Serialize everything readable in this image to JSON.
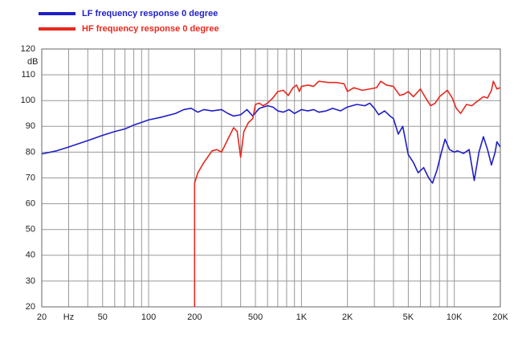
{
  "chart_data": {
    "type": "line",
    "log_x": true,
    "grid": true,
    "legend": "top-left",
    "y_label": "dB",
    "xlim": [
      20,
      20000
    ],
    "ylim": [
      20,
      120
    ],
    "xticks": [
      20,
      {
        "value": 30,
        "label": "Hz"
      },
      50,
      100,
      200,
      500,
      {
        "value": 1000,
        "label": "1K"
      },
      {
        "value": 2000,
        "label": "2K"
      },
      {
        "value": 5000,
        "label": "5K"
      },
      {
        "value": 10000,
        "label": "10K"
      },
      {
        "value": 20000,
        "label": "20K"
      }
    ],
    "xgrid": [
      20,
      30,
      40,
      50,
      60,
      70,
      80,
      90,
      100,
      200,
      300,
      400,
      500,
      600,
      700,
      800,
      900,
      1000,
      2000,
      3000,
      4000,
      5000,
      6000,
      7000,
      8000,
      9000,
      10000,
      20000
    ],
    "yticks": [
      20,
      30,
      40,
      50,
      60,
      70,
      80,
      90,
      100,
      110,
      120
    ],
    "series": [
      {
        "name": "LF frequency response 0 degree",
        "color": "#1f1fc8",
        "x": [
          20,
          25,
          30,
          40,
          50,
          60,
          70,
          80,
          100,
          120,
          150,
          170,
          190,
          210,
          230,
          260,
          300,
          330,
          360,
          400,
          440,
          480,
          530,
          600,
          650,
          700,
          760,
          830,
          900,
          1000,
          1100,
          1200,
          1300,
          1450,
          1600,
          1800,
          2000,
          2300,
          2600,
          2800,
          3000,
          3200,
          3500,
          3800,
          4000,
          4300,
          4600,
          5000,
          5400,
          5800,
          6300,
          6800,
          7200,
          7700,
          8200,
          8700,
          9300,
          10000,
          10500,
          11500,
          12500,
          13500,
          14500,
          15500,
          16500,
          17500,
          18500,
          19000,
          20000
        ],
        "values": [
          79.3,
          80.5,
          82,
          84.5,
          86.5,
          88,
          89,
          90.5,
          92.5,
          93.5,
          95,
          96.5,
          97,
          95.5,
          96.5,
          96,
          96.5,
          95,
          94,
          94.5,
          96.5,
          94,
          97,
          98,
          97.5,
          96,
          95.5,
          96.5,
          95,
          96.5,
          96,
          96.5,
          95.5,
          96,
          97,
          96,
          97.5,
          98.5,
          98,
          99,
          97,
          94.5,
          96,
          94,
          93,
          87,
          90,
          79,
          76,
          72,
          74,
          70,
          68,
          73,
          79.5,
          85,
          81,
          80,
          80.5,
          79.5,
          81,
          69,
          80,
          86,
          81,
          75,
          80,
          84,
          82
        ]
      },
      {
        "name": "HF frequency response 0 degree",
        "color": "#e8281e",
        "x": [
          200,
          200,
          210,
          230,
          260,
          280,
          300,
          330,
          360,
          380,
          400,
          420,
          450,
          480,
          500,
          530,
          560,
          600,
          650,
          700,
          760,
          820,
          880,
          930,
          970,
          1000,
          1100,
          1200,
          1300,
          1500,
          1700,
          1900,
          2000,
          2200,
          2500,
          2800,
          3100,
          3300,
          3600,
          4000,
          4400,
          4700,
          5000,
          5400,
          6000,
          6500,
          7000,
          7500,
          8000,
          9000,
          9700,
          10300,
          11000,
          12000,
          13000,
          14000,
          15500,
          16500,
          17500,
          18000,
          18500,
          19000,
          20000
        ],
        "values": [
          20,
          68,
          72,
          76,
          80.5,
          81,
          80,
          85,
          89.5,
          88,
          78,
          88,
          91.5,
          93,
          98.5,
          99,
          98,
          99,
          101,
          103.5,
          104,
          102,
          105,
          106,
          103.5,
          105.5,
          106,
          105.5,
          107.5,
          107,
          107,
          106.5,
          103.5,
          105,
          104,
          104.5,
          105,
          107.5,
          106,
          105.5,
          102,
          102.5,
          103.5,
          101.5,
          104.5,
          101,
          98,
          99,
          101.5,
          104,
          101,
          97,
          95,
          98.5,
          98,
          99.5,
          101.5,
          101,
          104,
          107.5,
          106,
          104.5,
          105
        ]
      }
    ]
  }
}
